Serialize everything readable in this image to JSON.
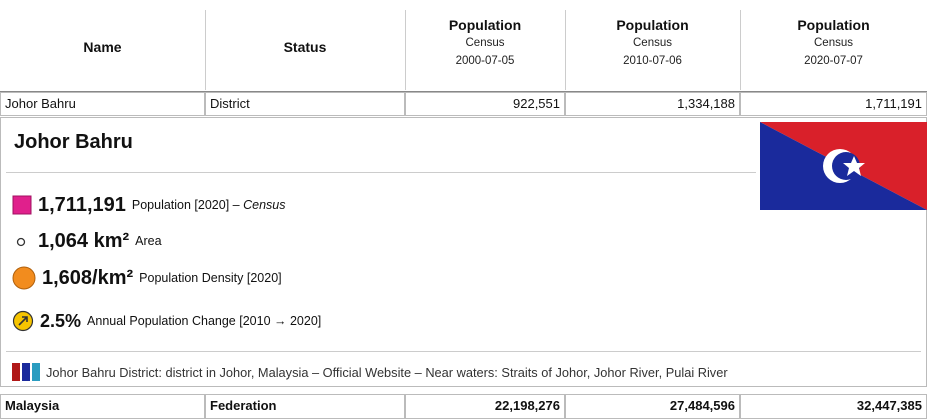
{
  "header": {
    "columns": [
      {
        "title": "Name"
      },
      {
        "title": "Status"
      },
      {
        "title": "Population",
        "sub1": "Census",
        "sub2": "2000-07-05"
      },
      {
        "title": "Population",
        "sub1": "Census",
        "sub2": "2010-07-06"
      },
      {
        "title": "Population",
        "sub1": "Census",
        "sub2": "2020-07-07"
      }
    ]
  },
  "rows": [
    [
      "Johor Bahru",
      "District",
      "922,551",
      "1,334,188",
      "1,711,191"
    ],
    [
      "Malaysia",
      "Federation",
      "22,198,276",
      "27,484,596",
      "32,447,385"
    ]
  ],
  "details": {
    "title": "Johor Bahru",
    "stats": [
      {
        "value": "1,711,191",
        "label": "Population [2020] –",
        "em": "Census"
      },
      {
        "value": "1,064 km²",
        "label": "Area"
      },
      {
        "value": "1,608/km²",
        "label": "Population Density [2020]"
      },
      {
        "value": "2.5%",
        "label": "Annual Population Change [2010 → 2020]"
      }
    ],
    "description": "Johor Bahru District: district in Johor, Malaysia – Official Website – Near waters: Straits of Johor, Johor River, Pulai River"
  }
}
